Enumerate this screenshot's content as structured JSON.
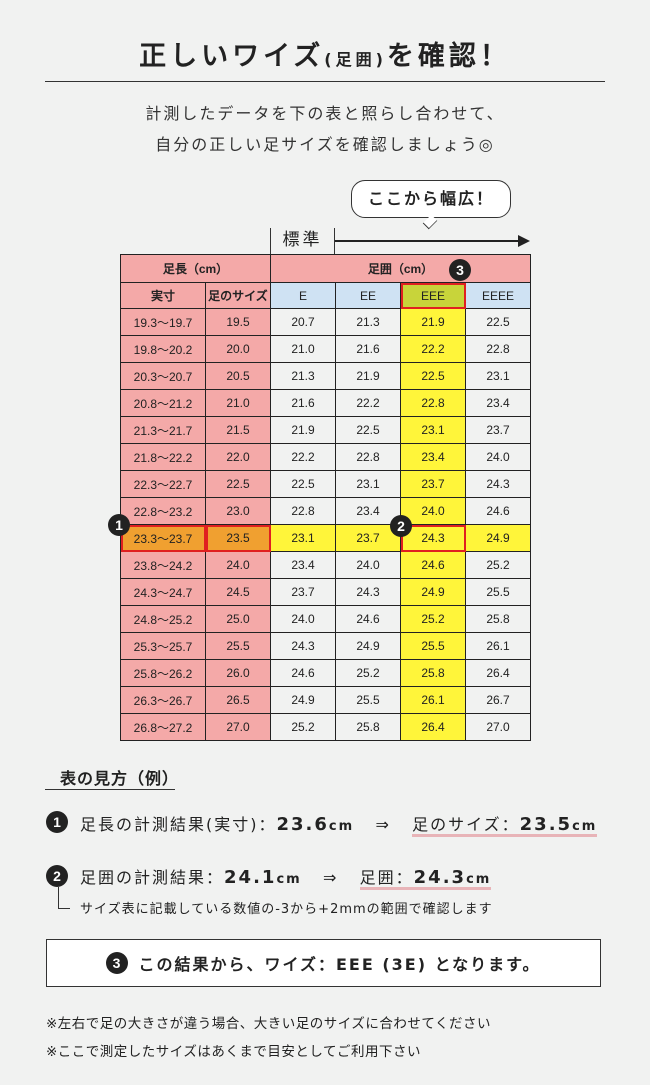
{
  "title": {
    "main": "正しいワイズ",
    "paren": "(足囲)",
    "tail": "を確認！"
  },
  "intro": [
    "計測したデータを下の表と照らし合わせて、",
    "自分の正しい足サイズを確認しましょう◎"
  ],
  "bubble": "ここから幅広！",
  "standard_label": "標準",
  "table": {
    "group_headers": [
      "足長（cm）",
      "足囲（cm）"
    ],
    "columns": [
      "実寸",
      "足のサイズ",
      "E",
      "EE",
      "EEE",
      "EEEE"
    ],
    "rows": [
      [
        "19.3〜19.7",
        "19.5",
        "20.7",
        "21.3",
        "21.9",
        "22.5"
      ],
      [
        "19.8〜20.2",
        "20.0",
        "21.0",
        "21.6",
        "22.2",
        "22.8"
      ],
      [
        "20.3〜20.7",
        "20.5",
        "21.3",
        "21.9",
        "22.5",
        "23.1"
      ],
      [
        "20.8〜21.2",
        "21.0",
        "21.6",
        "22.2",
        "22.8",
        "23.4"
      ],
      [
        "21.3〜21.7",
        "21.5",
        "21.9",
        "22.5",
        "23.1",
        "23.7"
      ],
      [
        "21.8〜22.2",
        "22.0",
        "22.2",
        "22.8",
        "23.4",
        "24.0"
      ],
      [
        "22.3〜22.7",
        "22.5",
        "22.5",
        "23.1",
        "23.7",
        "24.3"
      ],
      [
        "22.8〜23.2",
        "23.0",
        "22.8",
        "23.4",
        "24.0",
        "24.6"
      ],
      [
        "23.3〜23.7",
        "23.5",
        "23.1",
        "23.7",
        "24.3",
        "24.9"
      ],
      [
        "23.8〜24.2",
        "24.0",
        "23.4",
        "24.0",
        "24.6",
        "25.2"
      ],
      [
        "24.3〜24.7",
        "24.5",
        "23.7",
        "24.3",
        "24.9",
        "25.5"
      ],
      [
        "24.8〜25.2",
        "25.0",
        "24.0",
        "24.6",
        "25.2",
        "25.8"
      ],
      [
        "25.3〜25.7",
        "25.5",
        "24.3",
        "24.9",
        "25.5",
        "26.1"
      ],
      [
        "25.8〜26.2",
        "26.0",
        "24.6",
        "25.2",
        "25.8",
        "26.4"
      ],
      [
        "26.3〜26.7",
        "26.5",
        "24.9",
        "25.5",
        "26.1",
        "26.7"
      ],
      [
        "26.8〜27.2",
        "27.0",
        "25.2",
        "25.8",
        "26.4",
        "27.0"
      ]
    ],
    "highlight_row": 8,
    "highlight_col": 4
  },
  "markers": [
    "1",
    "2",
    "3"
  ],
  "howto": {
    "heading": "表の見方（例）",
    "step1": {
      "label": "足長の計測結果(実寸)：",
      "value": "23.6",
      "unit": "cm",
      "arrow": "⇒",
      "result_label": "足のサイズ：",
      "result_value": "23.5",
      "result_unit": "cm"
    },
    "step2": {
      "label": "足囲の計測結果：",
      "value": "24.1",
      "unit": "cm",
      "arrow": "⇒",
      "result_label": "足囲：",
      "result_value": "24.3",
      "result_unit": "cm"
    },
    "note": "サイズ表に記載している数値の-3から+2mmの範囲で確認します",
    "result": "この結果から、ワイズ：EEE (3E) となります。"
  },
  "footnotes": [
    "※左右で足の大きさが違う場合、大きい足のサイズに合わせてください",
    "※ここで測定したサイズはあくまで目安としてご利用下さい"
  ],
  "colors": {
    "pink": "#f4a9a8",
    "blue": "#cfe2f3",
    "yellow": "#fff53a",
    "orange": "#f0a030",
    "olive": "#c8d43a",
    "red": "#e02020"
  }
}
